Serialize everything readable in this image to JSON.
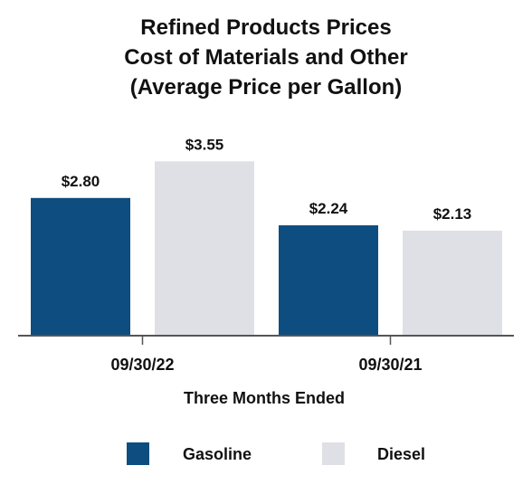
{
  "chart_data": {
    "type": "bar",
    "title_lines": [
      "Refined Products Prices",
      "Cost of Materials and Other",
      "(Average Price per Gallon)"
    ],
    "xlabel": "Three Months Ended",
    "ylabel": "",
    "categories": [
      "09/30/22",
      "09/30/21"
    ],
    "series": [
      {
        "name": "Gasoline",
        "color": "#0d4d80",
        "values": [
          2.8,
          2.24
        ],
        "labels": [
          "$2.80",
          "$2.24"
        ]
      },
      {
        "name": "Diesel",
        "color": "#dfe0e6",
        "values": [
          3.55,
          2.13
        ],
        "labels": [
          "$3.55",
          "$2.13"
        ]
      }
    ],
    "ylim": [
      0,
      4.0
    ],
    "grid": false,
    "legend": "bottom"
  }
}
